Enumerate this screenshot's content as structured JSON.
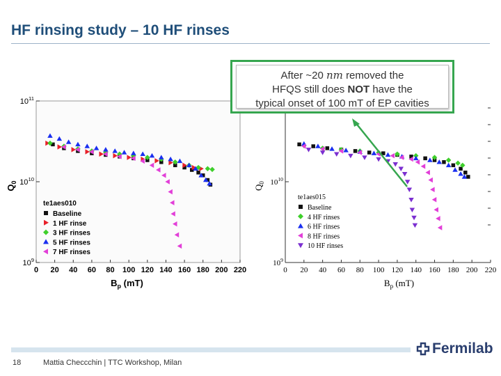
{
  "slide": {
    "title": "HF rinsing study – 10 HF rinses",
    "page_number": "18",
    "footer": "Mattia Checcchin | TTC Workshop, Milan",
    "logo_text": "Fermilab"
  },
  "callout": {
    "line1_pre": "After ~20",
    "line1_unit": "nm",
    "line1_post": "removed the",
    "line2_pre": "HFQS still does",
    "line2_bold": "NOT",
    "line2_post": "have the",
    "line3": "typical onset of 100 mT of EP cavities"
  },
  "colors": {
    "title": "#1f4e79",
    "callout_border": "#36a64f",
    "arrow": "#36a64f",
    "black": "#111111",
    "red": "#e8202a",
    "green": "#3ecf2b",
    "blue": "#1a2ff0",
    "magenta": "#e23fd8",
    "violet": "#7b2fd0"
  },
  "chart_data": [
    {
      "type": "scatter",
      "panel": "left",
      "ylog": true,
      "xlabel": "B_p (mT)",
      "xlabel_main": "B",
      "xlabel_sub": "p",
      "xlabel_unit": "(mT)",
      "ylabel": "Q_0",
      "xlim": [
        0,
        220
      ],
      "ylim": [
        1000000000.0,
        100000000000.0
      ],
      "xticks": [
        0,
        20,
        40,
        60,
        80,
        100,
        120,
        140,
        160,
        180,
        200,
        220
      ],
      "ytick_labels": [
        "10^11",
        "10^10",
        "10^9"
      ],
      "legend_title": "te1aes010",
      "series": [
        {
          "name": "Baseline",
          "marker": "square",
          "color": "#111111",
          "points": [
            [
              18,
              29000000000.0
            ],
            [
              30,
              26000000000.0
            ],
            [
              45,
              24000000000.0
            ],
            [
              60,
              22500000000.0
            ],
            [
              75,
              21500000000.0
            ],
            [
              90,
              20500000000.0
            ],
            [
              105,
              19500000000.0
            ],
            [
              120,
              18500000000.0
            ],
            [
              135,
              17500000000.0
            ],
            [
              150,
              16000000000.0
            ],
            [
              160,
              15000000000.0
            ],
            [
              168,
              14000000000.0
            ],
            [
              175,
              13000000000.0
            ],
            [
              180,
              12000000000.0
            ],
            [
              185,
              10500000000.0
            ],
            [
              188,
              9200000000.0
            ]
          ]
        },
        {
          "name": "1 HF rinse",
          "marker": "triangle-right",
          "color": "#e8202a",
          "points": [
            [
              12,
              30000000000.0
            ],
            [
              25,
              27000000000.0
            ],
            [
              40,
              25000000000.0
            ],
            [
              55,
              23500000000.0
            ],
            [
              70,
              22000000000.0
            ],
            [
              85,
              21000000000.0
            ],
            [
              100,
              20000000000.0
            ],
            [
              115,
              19000000000.0
            ],
            [
              130,
              18200000000.0
            ],
            [
              145,
              17200000000.0
            ],
            [
              160,
              16000000000.0
            ],
            [
              170,
              15000000000.0
            ],
            [
              178,
              14500000000.0
            ]
          ]
        },
        {
          "name": "3 HF rinses",
          "marker": "diamond",
          "color": "#3ecf2b",
          "points": [
            [
              15,
              30000000000.0
            ],
            [
              30,
              27500000000.0
            ],
            [
              45,
              25500000000.0
            ],
            [
              60,
              24000000000.0
            ],
            [
              75,
              23000000000.0
            ],
            [
              90,
              22000000000.0
            ],
            [
              105,
              21000000000.0
            ],
            [
              120,
              20000000000.0
            ],
            [
              135,
              19000000000.0
            ],
            [
              150,
              17500000000.0
            ],
            [
              165,
              16000000000.0
            ],
            [
              175,
              15000000000.0
            ],
            [
              185,
              14500000000.0
            ],
            [
              190,
              14200000000.0
            ]
          ]
        },
        {
          "name": "5 HF rinses",
          "marker": "triangle-up",
          "color": "#1a2ff0",
          "points": [
            [
              15,
              37000000000.0
            ],
            [
              25,
              34000000000.0
            ],
            [
              35,
              31000000000.0
            ],
            [
              45,
              29000000000.0
            ],
            [
              55,
              27500000000.0
            ],
            [
              65,
              26000000000.0
            ],
            [
              75,
              25000000000.0
            ],
            [
              85,
              24000000000.0
            ],
            [
              95,
              23000000000.0
            ],
            [
              105,
              22500000000.0
            ],
            [
              115,
              22000000000.0
            ],
            [
              125,
              21000000000.0
            ],
            [
              135,
              20000000000.0
            ],
            [
              145,
              19000000000.0
            ],
            [
              155,
              18000000000.0
            ],
            [
              165,
              16000000000.0
            ],
            [
              172,
              14500000000.0
            ],
            [
              178,
              12000000000.0
            ],
            [
              183,
              10500000000.0
            ],
            [
              187,
              9500000000.0
            ]
          ]
        },
        {
          "name": "7 HF rinses",
          "marker": "triangle-left",
          "color": "#e23fd8",
          "points": [
            [
              30,
              27000000000.0
            ],
            [
              45,
              25000000000.0
            ],
            [
              60,
              23500000000.0
            ],
            [
              75,
              22000000000.0
            ],
            [
              90,
              20500000000.0
            ],
            [
              105,
              19500000000.0
            ],
            [
              115,
              18000000000.0
            ],
            [
              125,
              16000000000.0
            ],
            [
              132,
              14000000000.0
            ],
            [
              138,
              12000000000.0
            ],
            [
              142,
              10000000000.0
            ],
            [
              145,
              7500000000.0
            ],
            [
              147,
              5500000000.0
            ],
            [
              148,
              4000000000.0
            ],
            [
              150,
              3000000000.0
            ],
            [
              152,
              2200000000.0
            ],
            [
              155,
              1600000000.0
            ]
          ]
        }
      ]
    },
    {
      "type": "scatter",
      "panel": "right",
      "ylog": true,
      "xlabel": "B_p (mT)",
      "xlabel_main": "B",
      "xlabel_sub": "p",
      "xlabel_unit": "(mT)",
      "ylabel": "Q_0",
      "xlim": [
        0,
        220
      ],
      "ylim": [
        1000000000.0,
        100000000000.0
      ],
      "xticks": [
        0,
        20,
        40,
        60,
        80,
        100,
        120,
        140,
        160,
        180,
        200,
        220
      ],
      "ytick_labels": [
        "10^10",
        "10^9"
      ],
      "legend_title": "te1aes015",
      "series": [
        {
          "name": "Baseline",
          "marker": "square",
          "color": "#111111",
          "points": [
            [
              15,
              29000000000.0
            ],
            [
              30,
              27500000000.0
            ],
            [
              45,
              26000000000.0
            ],
            [
              60,
              25000000000.0
            ],
            [
              75,
              24000000000.0
            ],
            [
              90,
              23000000000.0
            ],
            [
              105,
              22500000000.0
            ],
            [
              120,
              21500000000.0
            ],
            [
              135,
              20500000000.0
            ],
            [
              150,
              19500000000.0
            ],
            [
              160,
              18500000000.0
            ],
            [
              170,
              17500000000.0
            ],
            [
              180,
              16000000000.0
            ],
            [
              188,
              14500000000.0
            ],
            [
              193,
              13000000000.0
            ],
            [
              196,
              11500000000.0
            ]
          ]
        },
        {
          "name": "4 HF rinses",
          "marker": "diamond",
          "color": "#3ecf2b",
          "points": [
            [
              20,
              28000000000.0
            ],
            [
              40,
              26000000000.0
            ],
            [
              60,
              25000000000.0
            ],
            [
              80,
              24000000000.0
            ],
            [
              100,
              23000000000.0
            ],
            [
              120,
              22000000000.0
            ],
            [
              140,
              21000000000.0
            ],
            [
              160,
              20000000000.0
            ],
            [
              175,
              18500000000.0
            ],
            [
              185,
              17000000000.0
            ],
            [
              190,
              16000000000.0
            ]
          ]
        },
        {
          "name": "6 HF rinses",
          "marker": "triangle-up",
          "color": "#1a2ff0",
          "points": [
            [
              20,
              29500000000.0
            ],
            [
              35,
              27500000000.0
            ],
            [
              50,
              25500000000.0
            ],
            [
              65,
              24500000000.0
            ],
            [
              80,
              23500000000.0
            ],
            [
              95,
              22500000000.0
            ],
            [
              110,
              21500000000.0
            ],
            [
              125,
              20500000000.0
            ],
            [
              140,
              19500000000.0
            ],
            [
              155,
              18500000000.0
            ],
            [
              165,
              17500000000.0
            ],
            [
              175,
              16000000000.0
            ],
            [
              182,
              14000000000.0
            ],
            [
              188,
              12500000000.0
            ],
            [
              192,
              11500000000.0
            ]
          ]
        },
        {
          "name": "8 HF rinses",
          "marker": "triangle-left",
          "color": "#e23fd8",
          "points": [
            [
              20,
              27500000000.0
            ],
            [
              40,
              25500000000.0
            ],
            [
              60,
              24000000000.0
            ],
            [
              80,
              23000000000.0
            ],
            [
              100,
              22000000000.0
            ],
            [
              115,
              21000000000.0
            ],
            [
              125,
              20000000000.0
            ],
            [
              135,
              19000000000.0
            ],
            [
              142,
              17500000000.0
            ],
            [
              148,
              15500000000.0
            ],
            [
              153,
              13000000000.0
            ],
            [
              156,
              10500000000.0
            ],
            [
              158,
              8000000000.0
            ],
            [
              160,
              6000000000.0
            ],
            [
              162,
              4500000000.0
            ],
            [
              164,
              3500000000.0
            ],
            [
              166,
              2700000000.0
            ]
          ]
        },
        {
          "name": "10 HF rinses",
          "marker": "triangle-down",
          "color": "#7b2fd0",
          "points": [
            [
              25,
              25000000000.0
            ],
            [
              40,
              23000000000.0
            ],
            [
              55,
              22000000000.0
            ],
            [
              70,
              21000000000.0
            ],
            [
              85,
              20000000000.0
            ],
            [
              100,
              19000000000.0
            ],
            [
              110,
              18000000000.0
            ],
            [
              118,
              16500000000.0
            ],
            [
              124,
              14500000000.0
            ],
            [
              128,
              12500000000.0
            ],
            [
              131,
              10000000000.0
            ],
            [
              133,
              8000000000.0
            ],
            [
              135,
              6000000000.0
            ],
            [
              136,
              4500000000.0
            ],
            [
              138,
              3600000000.0
            ],
            [
              139,
              2900000000.0
            ]
          ]
        }
      ]
    }
  ]
}
